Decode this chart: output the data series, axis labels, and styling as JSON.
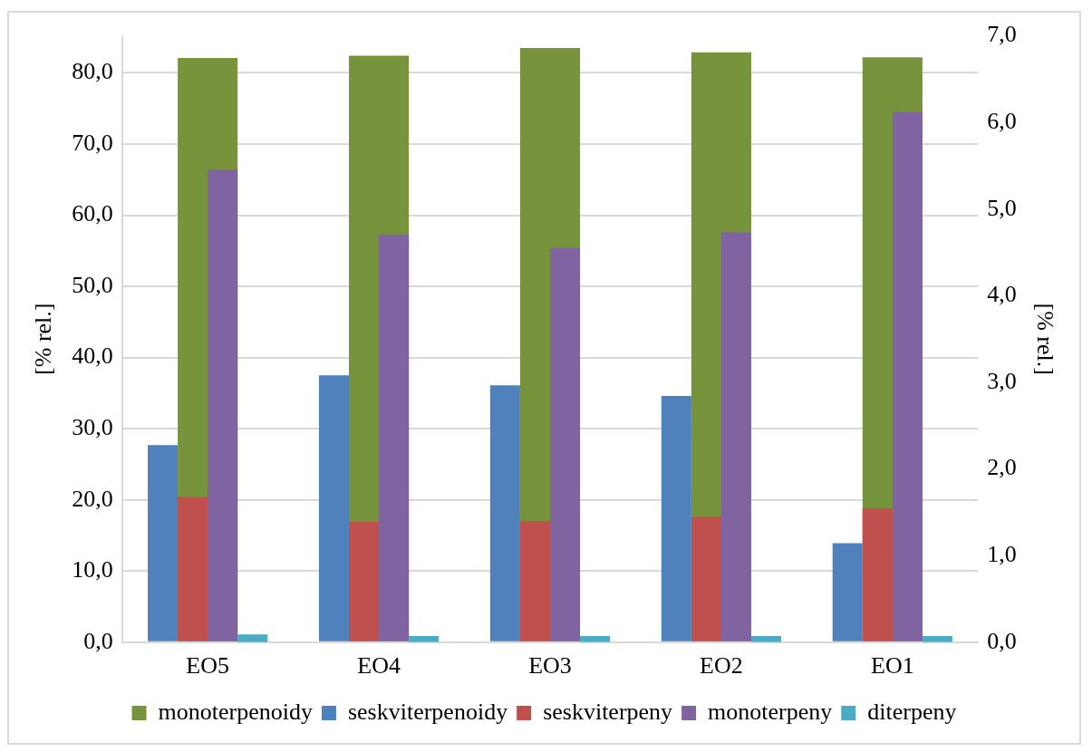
{
  "chart_data": {
    "type": "bar",
    "ylabel": "[% rel.]",
    "y2label": "[% rel.]",
    "categories": [
      "EO5",
      "EO4",
      "EO3",
      "EO2",
      "EO1"
    ],
    "series": [
      {
        "name": "monoterpenoidy",
        "color": "#77933c",
        "values": [
          82.1,
          82.4,
          83.5,
          82.9,
          82.2
        ]
      },
      {
        "name": "seskviterpenoidy",
        "color": "#4f81bd",
        "values": [
          27.7,
          37.5,
          36.1,
          34.6,
          13.9
        ]
      },
      {
        "name": "seskviterpeny",
        "color": "#c0504d",
        "values": [
          20.4,
          16.9,
          17.0,
          17.6,
          18.8
        ]
      },
      {
        "name": "monoterpeny",
        "color": "#8064a2",
        "values": [
          66.4,
          57.3,
          55.4,
          57.6,
          74.5
        ]
      },
      {
        "name": "diterpeny",
        "color": "#4bacc6",
        "axis": "y2",
        "values": [
          0.09,
          0.07,
          0.07,
          0.07,
          0.07
        ]
      }
    ],
    "ylim": [
      0,
      85.2
    ],
    "yticks": [
      {
        "value": 0,
        "label": "0,0"
      },
      {
        "value": 10,
        "label": "10,0"
      },
      {
        "value": 20,
        "label": "20,0"
      },
      {
        "value": 30,
        "label": "30,0"
      },
      {
        "value": 40,
        "label": "40,0"
      },
      {
        "value": 50,
        "label": "50,0"
      },
      {
        "value": 60,
        "label": "60,0"
      },
      {
        "value": 70,
        "label": "70,0"
      },
      {
        "value": 80,
        "label": "80,0"
      }
    ],
    "y2lim": [
      0,
      7
    ],
    "y2ticks": [
      {
        "value": 0,
        "label": "0,0"
      },
      {
        "value": 1,
        "label": "1,0"
      },
      {
        "value": 2,
        "label": "2,0"
      },
      {
        "value": 3,
        "label": "3,0"
      },
      {
        "value": 4,
        "label": "4,0"
      },
      {
        "value": 5,
        "label": "5,0"
      },
      {
        "value": 6,
        "label": "6,0"
      },
      {
        "value": 7,
        "label": "7,0"
      }
    ],
    "grid": "y",
    "legend": "bottom"
  }
}
